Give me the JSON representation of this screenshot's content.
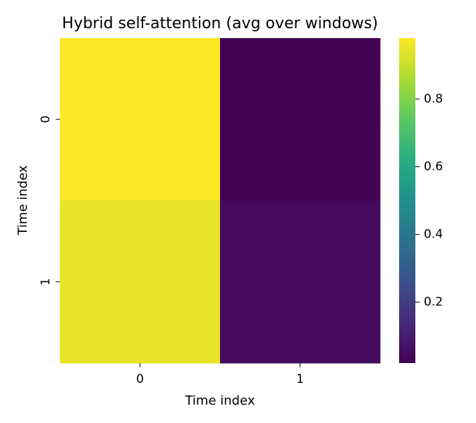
{
  "chart_data": {
    "type": "heatmap",
    "title": "Hybrid self-attention (avg over windows)",
    "xlabel": "Time index",
    "ylabel": "Time index",
    "x_categories": [
      "0",
      "1"
    ],
    "y_categories": [
      "0",
      "1"
    ],
    "values": [
      [
        0.98,
        0.02
      ],
      [
        0.95,
        0.05
      ]
    ],
    "colormap": "viridis",
    "colorbar": {
      "range": [
        0.02,
        0.98
      ],
      "ticks": [
        0.2,
        0.4,
        0.6,
        0.8
      ],
      "tick_labels": [
        "0.2",
        "0.4",
        "0.6",
        "0.8"
      ]
    },
    "grid": false,
    "legend": "none"
  }
}
